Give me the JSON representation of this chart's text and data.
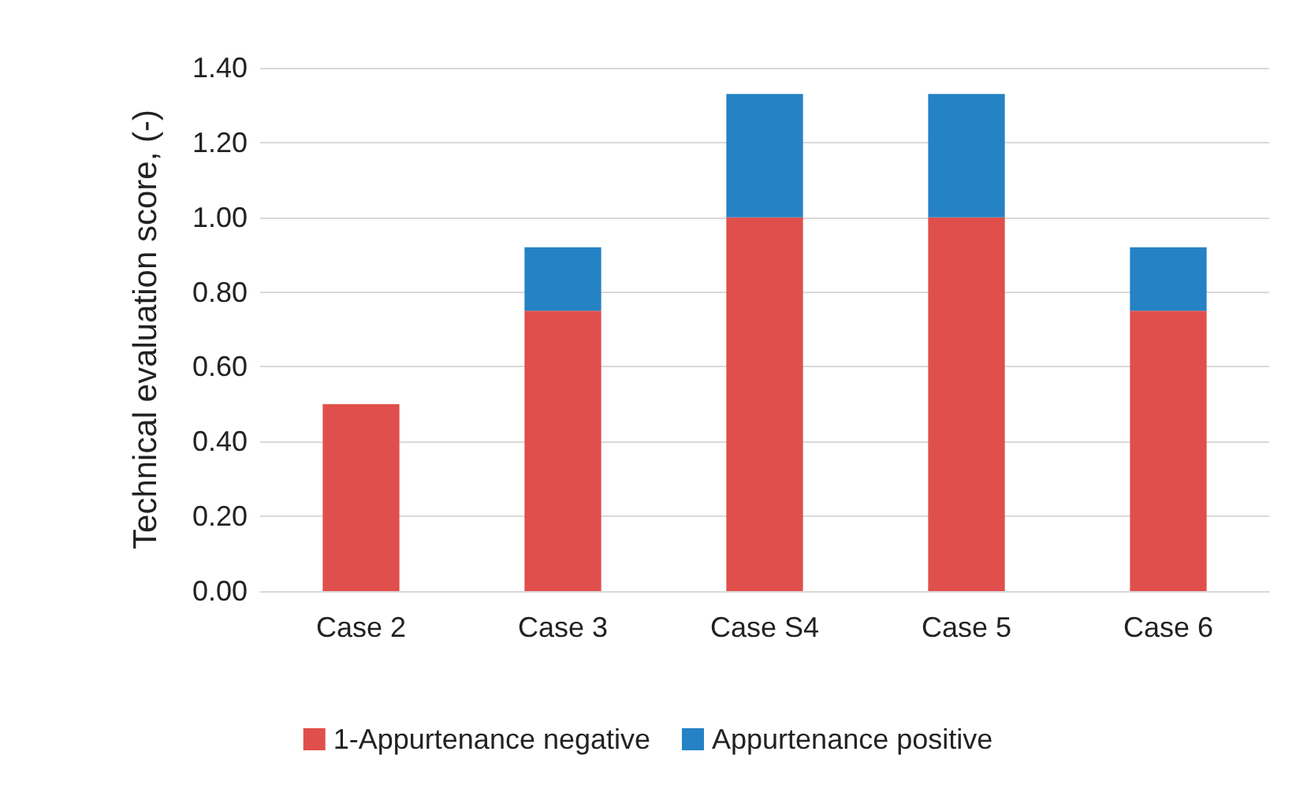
{
  "chart_data": {
    "type": "bar",
    "ylabel": "Technical evaluation score, (-)",
    "categories": [
      "Case 2",
      "Case 3",
      "Case S4",
      "Case 5",
      "Case 6"
    ],
    "series": [
      {
        "name": "1-Appurtenance negative",
        "color": "#e04f4b",
        "values": [
          0.5,
          0.75,
          1.0,
          1.0,
          0.75
        ]
      },
      {
        "name": "Appurtenance positive",
        "color": "#2582c5",
        "values": [
          null,
          0.17,
          0.33,
          0.33,
          0.17
        ]
      }
    ],
    "stacked": true,
    "ylim": [
      0,
      1.4
    ],
    "yticks": [
      {
        "value": 0,
        "label": "0.00"
      },
      {
        "value": 0.2,
        "label": "0.20"
      },
      {
        "value": 0.4,
        "label": "0.40"
      },
      {
        "value": 0.6,
        "label": "0.60"
      },
      {
        "value": 0.8,
        "label": "0.80"
      },
      {
        "value": 1.0,
        "label": "1.00"
      },
      {
        "value": 1.2,
        "label": "1.20"
      },
      {
        "value": 1.4,
        "label": "1.40"
      }
    ],
    "grid": "y",
    "legend": "bottom"
  }
}
